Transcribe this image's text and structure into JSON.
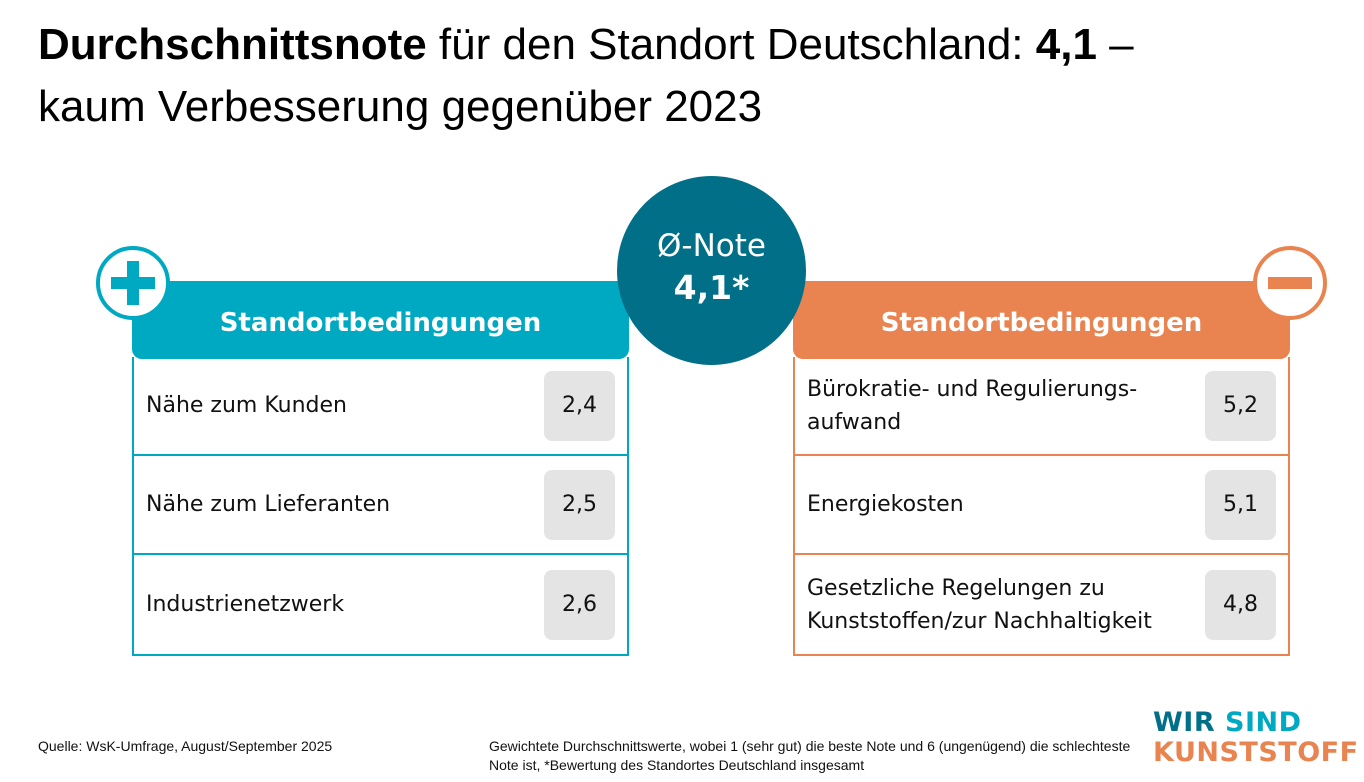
{
  "title": {
    "bold1": "Durchschnittsnote",
    "text1": " für den Standort Deutschland: ",
    "bold2": "4,1",
    "text2": " –",
    "line2": "kaum Verbesserung gegenüber 2023"
  },
  "average": {
    "label": "Ø-Note",
    "value": "4,1*"
  },
  "positive": {
    "icon": "plus-icon",
    "header": "Standortbedingungen",
    "items": [
      {
        "label": "Nähe zum Kunden",
        "value": "2,4"
      },
      {
        "label": "Nähe zum Lieferanten",
        "value": "2,5"
      },
      {
        "label": "Industrienetzwerk",
        "value": "2,6"
      }
    ]
  },
  "negative": {
    "icon": "minus-icon",
    "header": "Standortbedingungen",
    "items": [
      {
        "label": "Bürokratie- und Regulierungs-aufwand",
        "value": "5,2"
      },
      {
        "label": "Energiekosten",
        "value": "5,1"
      },
      {
        "label": "Gesetzliche Regelungen zu Kunststoffen/zur Nachhaltigkeit",
        "value": "4,8"
      }
    ]
  },
  "footer": {
    "source": "Quelle: WsK-Umfrage, August/September 2025",
    "note": "Gewichtete Durchschnittswerte, wobei 1 (sehr gut) die beste Note und 6 (ungenügend) die schlechteste Note ist, *Bewertung des Standortes Deutschland insgesamt"
  },
  "logo": {
    "wir": "WIR",
    "sind": "SIND",
    "kunststoff": "KUNSTSTOFF"
  },
  "colors": {
    "teal": "#00a9c2",
    "dark_teal": "#006f87",
    "orange": "#e9834f",
    "value_bg": "#e4e4e4"
  }
}
